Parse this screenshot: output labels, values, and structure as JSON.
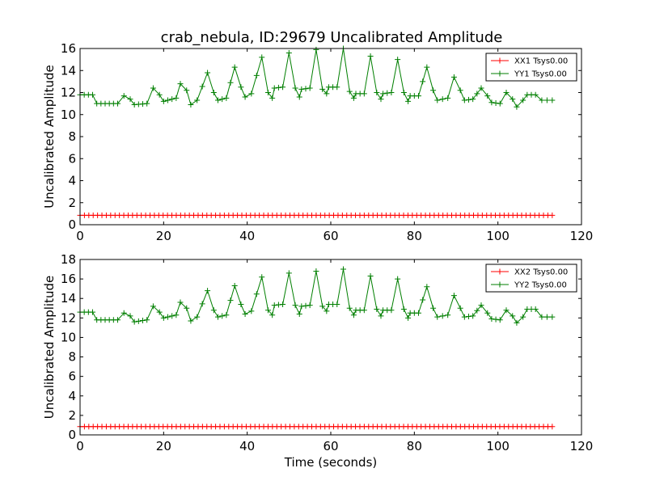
{
  "title": "crab_nebula, ID:29679 Uncalibrated Amplitude",
  "colors": {
    "red": "#ff0000",
    "green": "#007f00",
    "axis": "#000000",
    "background": "#ffffff"
  },
  "chart_data": [
    {
      "type": "line",
      "title": "crab_nebula, ID:29679 Uncalibrated Amplitude",
      "xlabel": "",
      "ylabel": "Uncalibrated Amplitude",
      "xlim": [
        0,
        120
      ],
      "ylim": [
        0,
        16
      ],
      "xticks": [
        0,
        20,
        40,
        60,
        80,
        100,
        120
      ],
      "yticks": [
        0,
        2,
        4,
        6,
        8,
        10,
        12,
        14,
        16
      ],
      "grid": false,
      "legend": "top-right",
      "marker": "+",
      "series": [
        {
          "name": "XX1 Tsys0.00",
          "color": "#ff0000",
          "points": [
            [
              0,
              0.85
            ],
            [
              113,
              0.85
            ]
          ]
        },
        {
          "name": "YY1 Tsys0.00",
          "color": "#007f00",
          "points": [
            [
              0,
              11.8
            ],
            [
              3,
              11.8
            ],
            [
              4,
              11.0
            ],
            [
              9,
              11.0
            ],
            [
              10.5,
              11.7
            ],
            [
              12,
              11.4
            ],
            [
              13,
              10.9
            ],
            [
              16,
              11.0
            ],
            [
              17.5,
              12.4
            ],
            [
              19,
              11.8
            ],
            [
              20,
              11.2
            ],
            [
              23,
              11.5
            ],
            [
              24,
              12.8
            ],
            [
              25.5,
              12.2
            ],
            [
              26.5,
              10.9
            ],
            [
              28,
              11.3
            ],
            [
              30.5,
              13.8
            ],
            [
              32,
              12.0
            ],
            [
              33,
              11.3
            ],
            [
              35,
              11.5
            ],
            [
              37,
              14.3
            ],
            [
              38.5,
              12.5
            ],
            [
              39.5,
              11.6
            ],
            [
              41,
              11.9
            ],
            [
              43.5,
              15.2
            ],
            [
              45,
              12.0
            ],
            [
              46,
              11.5
            ],
            [
              46.5,
              12.4
            ],
            [
              48.5,
              12.5
            ],
            [
              50,
              15.6
            ],
            [
              51.5,
              12.4
            ],
            [
              52.5,
              11.6
            ],
            [
              53,
              12.3
            ],
            [
              55,
              12.4
            ],
            [
              56.5,
              15.9
            ],
            [
              58,
              12.3
            ],
            [
              59,
              11.9
            ],
            [
              59.5,
              12.5
            ],
            [
              61.5,
              12.5
            ],
            [
              63,
              16.0
            ],
            [
              64.5,
              12.1
            ],
            [
              65.5,
              11.5
            ],
            [
              66,
              11.9
            ],
            [
              68,
              11.9
            ],
            [
              69.5,
              15.3
            ],
            [
              71,
              12.0
            ],
            [
              72,
              11.4
            ],
            [
              72.5,
              11.9
            ],
            [
              74.5,
              12.0
            ],
            [
              76,
              15.0
            ],
            [
              77.5,
              12.0
            ],
            [
              78.5,
              11.2
            ],
            [
              79,
              11.7
            ],
            [
              81,
              11.7
            ],
            [
              83,
              14.3
            ],
            [
              84.5,
              12.2
            ],
            [
              85.5,
              11.3
            ],
            [
              88,
              11.5
            ],
            [
              89.5,
              13.4
            ],
            [
              91,
              12.2
            ],
            [
              92,
              11.3
            ],
            [
              94,
              11.4
            ],
            [
              96,
              12.4
            ],
            [
              97.5,
              11.7
            ],
            [
              98.5,
              11.1
            ],
            [
              100.5,
              11.0
            ],
            [
              102,
              12.0
            ],
            [
              103.5,
              11.4
            ],
            [
              104.5,
              10.7
            ],
            [
              106,
              11.3
            ],
            [
              107,
              11.8
            ],
            [
              109,
              11.8
            ],
            [
              110.5,
              11.3
            ],
            [
              113,
              11.3
            ]
          ]
        }
      ]
    },
    {
      "type": "line",
      "title": "",
      "xlabel": "Time (seconds)",
      "ylabel": "Uncalibrated Amplitude",
      "xlim": [
        0,
        120
      ],
      "ylim": [
        0,
        18
      ],
      "xticks": [
        0,
        20,
        40,
        60,
        80,
        100,
        120
      ],
      "yticks": [
        0,
        2,
        4,
        6,
        8,
        10,
        12,
        14,
        16,
        18
      ],
      "grid": false,
      "legend": "top-right",
      "marker": "+",
      "series": [
        {
          "name": "XX2 Tsys0.00",
          "color": "#ff0000",
          "points": [
            [
              0,
              0.85
            ],
            [
              113,
              0.85
            ]
          ]
        },
        {
          "name": "YY2 Tsys0.00",
          "color": "#007f00",
          "points": [
            [
              0,
              12.6
            ],
            [
              3,
              12.6
            ],
            [
              4,
              11.8
            ],
            [
              9,
              11.8
            ],
            [
              10.5,
              12.5
            ],
            [
              12,
              12.2
            ],
            [
              13,
              11.6
            ],
            [
              16,
              11.8
            ],
            [
              17.5,
              13.2
            ],
            [
              19,
              12.6
            ],
            [
              20,
              12.0
            ],
            [
              23,
              12.3
            ],
            [
              24,
              13.6
            ],
            [
              25.5,
              13.0
            ],
            [
              26.5,
              11.7
            ],
            [
              28,
              12.1
            ],
            [
              30.5,
              14.8
            ],
            [
              32,
              12.8
            ],
            [
              33,
              12.1
            ],
            [
              35,
              12.3
            ],
            [
              37,
              15.3
            ],
            [
              38.5,
              13.4
            ],
            [
              39.5,
              12.4
            ],
            [
              41,
              12.7
            ],
            [
              43.5,
              16.2
            ],
            [
              45,
              12.8
            ],
            [
              46,
              12.3
            ],
            [
              46.5,
              13.3
            ],
            [
              48.5,
              13.4
            ],
            [
              50,
              16.6
            ],
            [
              51.5,
              13.3
            ],
            [
              52.5,
              12.4
            ],
            [
              53,
              13.2
            ],
            [
              55,
              13.3
            ],
            [
              56.5,
              16.8
            ],
            [
              58,
              13.2
            ],
            [
              59,
              12.7
            ],
            [
              59.5,
              13.4
            ],
            [
              61.5,
              13.4
            ],
            [
              63,
              17.0
            ],
            [
              64.5,
              13.0
            ],
            [
              65.5,
              12.3
            ],
            [
              66,
              12.8
            ],
            [
              68,
              12.8
            ],
            [
              69.5,
              16.3
            ],
            [
              71,
              12.9
            ],
            [
              72,
              12.2
            ],
            [
              72.5,
              12.8
            ],
            [
              74.5,
              12.8
            ],
            [
              76,
              16.0
            ],
            [
              77.5,
              12.9
            ],
            [
              78.5,
              12.0
            ],
            [
              79,
              12.5
            ],
            [
              81,
              12.5
            ],
            [
              83,
              15.2
            ],
            [
              84.5,
              13.0
            ],
            [
              85.5,
              12.1
            ],
            [
              88,
              12.3
            ],
            [
              89.5,
              14.3
            ],
            [
              91,
              13.0
            ],
            [
              92,
              12.1
            ],
            [
              94,
              12.2
            ],
            [
              96,
              13.3
            ],
            [
              97.5,
              12.5
            ],
            [
              98.5,
              11.9
            ],
            [
              100.5,
              11.8
            ],
            [
              102,
              12.8
            ],
            [
              103.5,
              12.2
            ],
            [
              104.5,
              11.5
            ],
            [
              106,
              12.1
            ],
            [
              107,
              12.9
            ],
            [
              109,
              12.9
            ],
            [
              110.5,
              12.1
            ],
            [
              113,
              12.1
            ]
          ]
        }
      ]
    }
  ]
}
